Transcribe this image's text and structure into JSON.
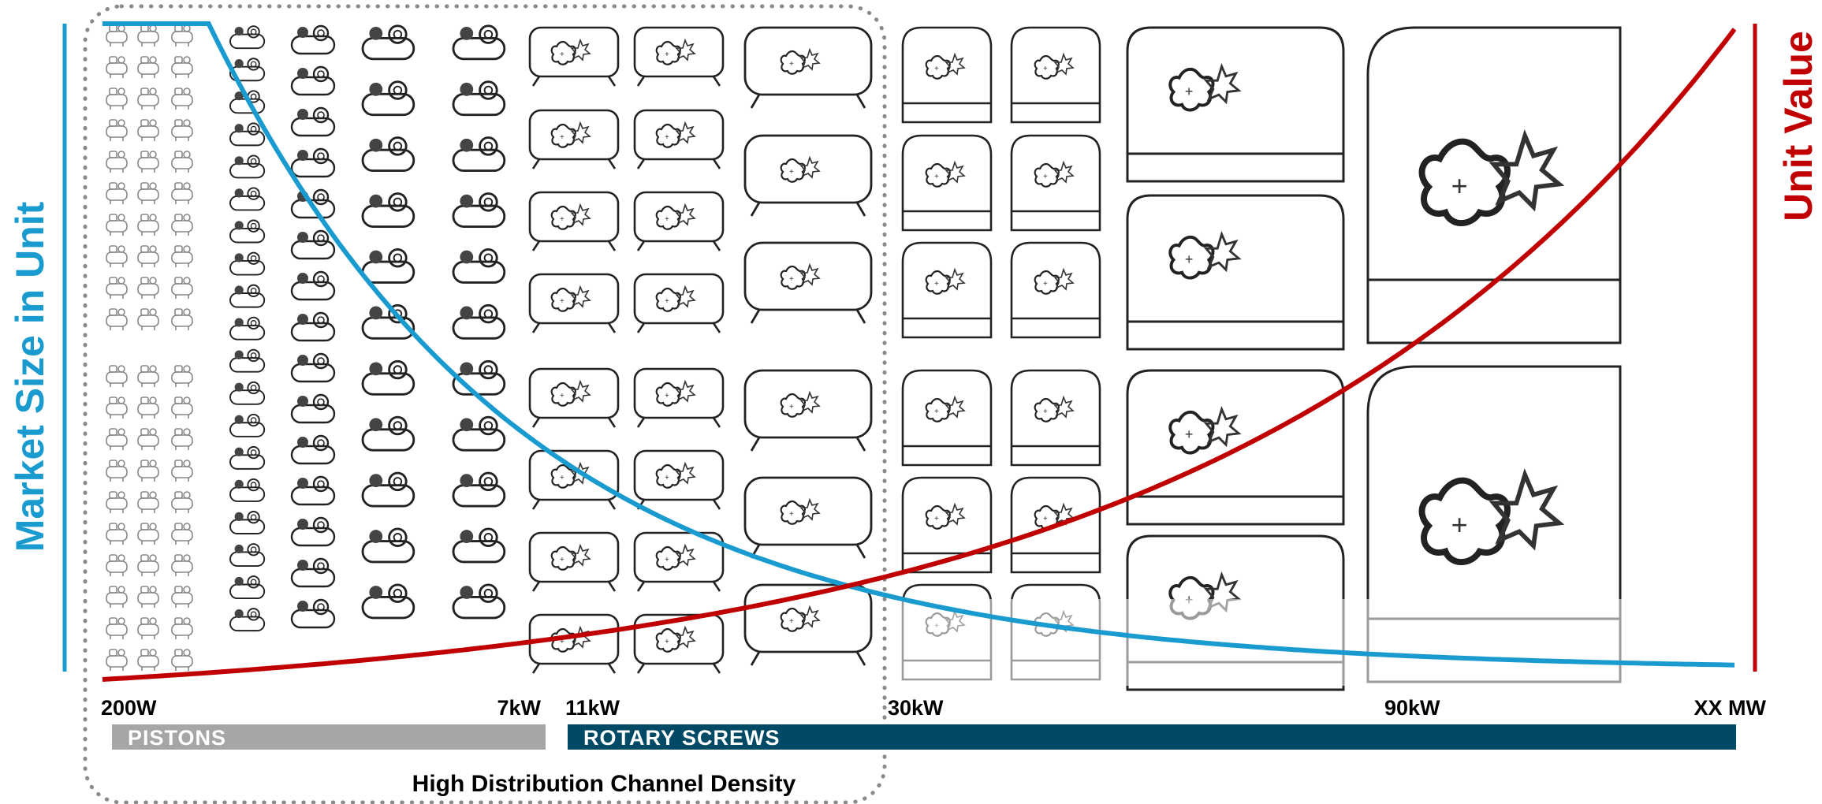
{
  "left_axis": {
    "title": "Market Size in Unit",
    "color": "#1a9bd0"
  },
  "right_axis": {
    "title": "Unit Value",
    "color": "#c00000"
  },
  "power_ticks": [
    "200W",
    "7kW",
    "11kW",
    "30kW",
    "90kW",
    "XX MW"
  ],
  "technologies": [
    {
      "label": "PISTONS",
      "color": "#a6a6a6"
    },
    {
      "label": "ROTARY SCREWS",
      "color": "#004a66"
    }
  ],
  "channel_zone": {
    "label": "High Distribution Channel Density"
  },
  "curves": {
    "market_size": {
      "trend": "decreasing",
      "color": "#1a9bd0"
    },
    "unit_value": {
      "trend": "increasing",
      "color": "#c00000"
    }
  },
  "icons": [
    "small-piston-compressor-icon",
    "piston-compressor-icon",
    "screw-compressor-icon",
    "cabinet-compressor-icon",
    "large-compressor-icon"
  ]
}
